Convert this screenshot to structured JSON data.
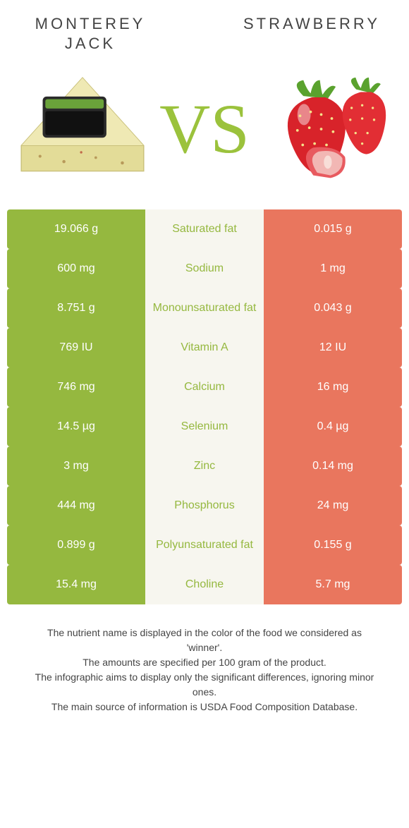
{
  "left_title": "MONTEREY JACK",
  "right_title": "STRAWBERRY",
  "vs_text": "VS",
  "colors": {
    "left_bg": "#95b83f",
    "right_bg": "#e9765e",
    "mid_bg": "#f7f6ef",
    "left_text": "#95b83f",
    "right_text": "#e9765e",
    "vs": "#9bc23c"
  },
  "rows": [
    {
      "left": "19.066 g",
      "label": "Saturated fat",
      "right": "0.015 g",
      "winner": "left"
    },
    {
      "left": "600 mg",
      "label": "Sodium",
      "right": "1 mg",
      "winner": "left"
    },
    {
      "left": "8.751 g",
      "label": "Monounsaturated fat",
      "right": "0.043 g",
      "winner": "left"
    },
    {
      "left": "769 IU",
      "label": "Vitamin A",
      "right": "12 IU",
      "winner": "left"
    },
    {
      "left": "746 mg",
      "label": "Calcium",
      "right": "16 mg",
      "winner": "left"
    },
    {
      "left": "14.5 µg",
      "label": "Selenium",
      "right": "0.4 µg",
      "winner": "left"
    },
    {
      "left": "3 mg",
      "label": "Zinc",
      "right": "0.14 mg",
      "winner": "left"
    },
    {
      "left": "444 mg",
      "label": "Phosphorus",
      "right": "24 mg",
      "winner": "left"
    },
    {
      "left": "0.899 g",
      "label": "Polyunsaturated fat",
      "right": "0.155 g",
      "winner": "left"
    },
    {
      "left": "15.4 mg",
      "label": "Choline",
      "right": "5.7 mg",
      "winner": "left"
    }
  ],
  "notes": [
    "The nutrient name is displayed in the color of the food we considered as 'winner'.",
    "The amounts are specified per 100 gram of the product.",
    "The infographic aims to display only the significant differences, ignoring minor ones.",
    "The main source of information is USDA Food Composition Database."
  ]
}
